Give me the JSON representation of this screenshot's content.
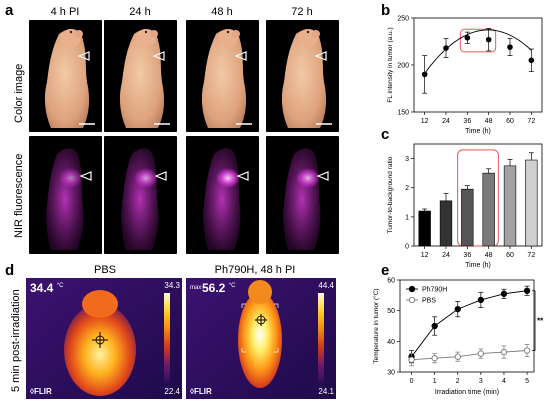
{
  "panels": {
    "a": {
      "letter": "a",
      "columns": [
        "4 h PI",
        "24 h",
        "48 h",
        "72 h"
      ],
      "rows": [
        "Color image",
        "NIR fluorescence"
      ]
    },
    "b": {
      "letter": "b"
    },
    "c": {
      "letter": "c"
    },
    "d": {
      "letter": "d",
      "columns": [
        "PBS",
        "Ph790H, 48 h PI"
      ],
      "row_label": "5 min post-irradiation",
      "images": [
        {
          "max_prefix": "",
          "temp": "34.4",
          "unit": "°C",
          "scale_max": "34.3",
          "scale_min": "22.4",
          "brand": "FLIR"
        },
        {
          "max_prefix": "max",
          "temp": "56.2",
          "unit": "°C",
          "scale_max": "44.4",
          "scale_min": "24.1",
          "brand": "FLIR"
        }
      ]
    },
    "e": {
      "letter": "e"
    }
  },
  "colors": {
    "fluorescence": "#d63ad8",
    "highlight_box": "#e8575a",
    "thermal_hot": "#ffe45c",
    "thermal_cold": "#3a1466"
  },
  "chart_data": [
    {
      "panel": "b",
      "type": "line",
      "x": [
        12,
        24,
        36,
        48,
        60,
        72
      ],
      "values": [
        190,
        218,
        229,
        227,
        219,
        205
      ],
      "errors": [
        20,
        10,
        6,
        12,
        9,
        12
      ],
      "xlabel": "Time (h)",
      "ylabel": "FL intensity in tumor (a.u.)",
      "xlim": [
        6,
        78
      ],
      "ylim": [
        150,
        250
      ],
      "xticks": [
        "12",
        "24",
        "36",
        "48",
        "60",
        "72"
      ],
      "yticks": [
        "150",
        "200",
        "250"
      ],
      "highlight": [
        36,
        48
      ]
    },
    {
      "panel": "c",
      "type": "bar",
      "categories": [
        "12",
        "24",
        "36",
        "48",
        "60",
        "72"
      ],
      "values": [
        1.2,
        1.55,
        1.95,
        2.5,
        2.75,
        2.95
      ],
      "errors": [
        0.07,
        0.25,
        0.12,
        0.15,
        0.22,
        0.25
      ],
      "bar_colors": [
        "#000000",
        "#333333",
        "#555555",
        "#7a7a7a",
        "#a3a3a3",
        "#cfcfcf"
      ],
      "xlabel": "Time (h)",
      "ylabel": "Tumor-to-background ratio",
      "ylim": [
        0,
        3.5
      ],
      "yticks": [
        "0",
        "1",
        "2",
        "3"
      ],
      "highlight": [
        "36",
        "48"
      ]
    },
    {
      "panel": "e",
      "type": "line",
      "x": [
        0,
        1,
        2,
        3,
        4,
        5
      ],
      "series": [
        {
          "name": "Ph790H",
          "values": [
            35,
            45,
            50.5,
            53.5,
            55.5,
            56.5
          ],
          "errors": [
            2,
            3,
            2.5,
            2.5,
            1.5,
            1.5
          ],
          "marker": "filled"
        },
        {
          "name": "PBS",
          "values": [
            34,
            34.5,
            35,
            36,
            36.5,
            37
          ],
          "errors": [
            2,
            1.5,
            1.5,
            1.5,
            2,
            2
          ],
          "marker": "open"
        }
      ],
      "xlabel": "Irradiation time (min)",
      "ylabel": "Temperature in tumor (°C)",
      "xlim": [
        -0.5,
        5.3
      ],
      "ylim": [
        30,
        60
      ],
      "xticks": [
        "0",
        "1",
        "2",
        "3",
        "4",
        "5"
      ],
      "yticks": [
        "30",
        "40",
        "50",
        "60"
      ],
      "legend": "top-left",
      "significance": "**"
    }
  ]
}
